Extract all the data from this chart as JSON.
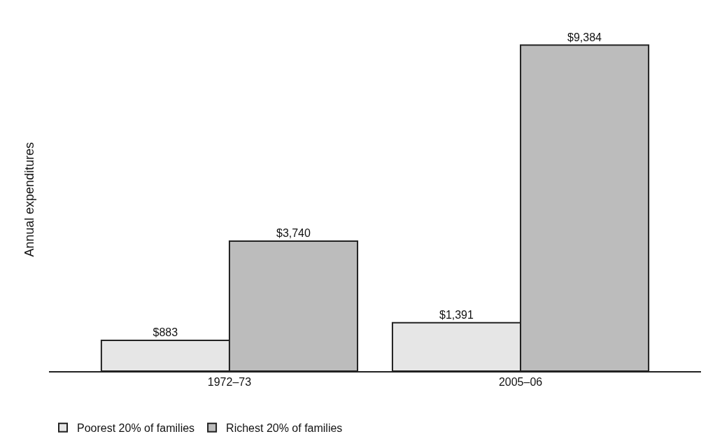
{
  "chart_data": {
    "type": "bar",
    "ylabel": "Annual expenditures",
    "categories": [
      "1972–73",
      "2005–06"
    ],
    "series": [
      {
        "name": "Poorest 20% of families",
        "color": "#e6e6e6",
        "values": [
          883,
          1391
        ],
        "value_labels": [
          "$883",
          "$1,391"
        ]
      },
      {
        "name": "Richest 20% of families",
        "color": "#bcbcbc",
        "values": [
          3740,
          9384
        ],
        "value_labels": [
          "$3,740",
          "$9,384"
        ]
      }
    ],
    "legend": "bottom left"
  }
}
